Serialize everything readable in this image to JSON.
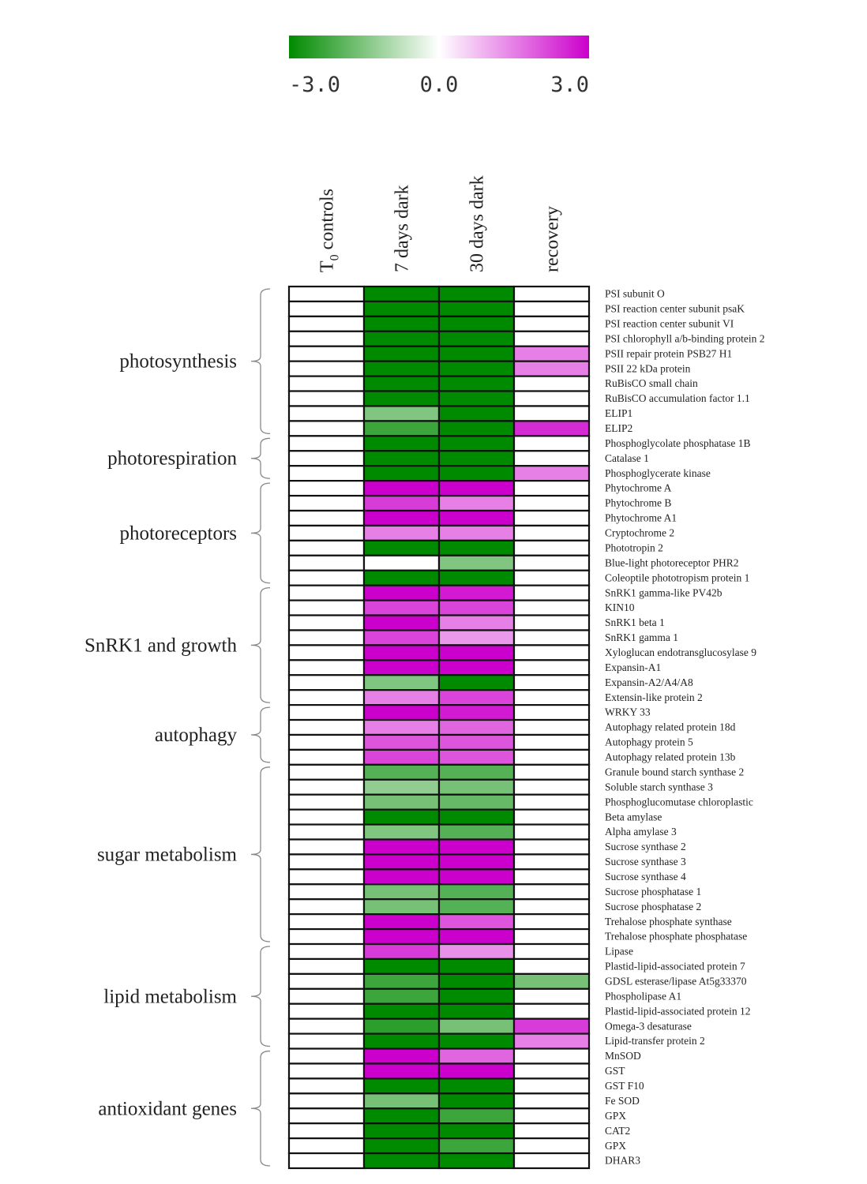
{
  "chart_data": {
    "type": "heatmap",
    "title": "",
    "colorscale": {
      "min": -3.0,
      "mid": 0.0,
      "max": 3.0,
      "min_color": "#008a00",
      "mid_color": "#ffffff",
      "max_color": "#cc00cc",
      "tick_labels": [
        "-3.0",
        "0.0",
        "3.0"
      ]
    },
    "columns": [
      {
        "label": "T",
        "sub": "0",
        "rest": " controls"
      },
      {
        "label": "7 days dark",
        "sub": "",
        "rest": ""
      },
      {
        "label": "30 days dark",
        "sub": "",
        "rest": ""
      },
      {
        "label": "recovery",
        "sub": "",
        "rest": ""
      }
    ],
    "groups": [
      {
        "label": "photosynthesis",
        "from": 1,
        "to": 10
      },
      {
        "label": "photorespiration",
        "from": 11,
        "to": 13
      },
      {
        "label": "photoreceptors",
        "from": 14,
        "to": 20
      },
      {
        "label": "SnRK1 and growth",
        "from": 21,
        "to": 28
      },
      {
        "label": "autophagy",
        "from": 29,
        "to": 32
      },
      {
        "label": "sugar metabolism",
        "from": 33,
        "to": 44
      },
      {
        "label": "lipid metabolism",
        "from": 45,
        "to": 51
      },
      {
        "label": "antioxidant genes",
        "from": 52,
        "to": 59
      }
    ],
    "rows": [
      {
        "gene": "PSI subunit O",
        "values": [
          0,
          -3,
          -3,
          0
        ]
      },
      {
        "gene": "PSI reaction center subunit psaK",
        "values": [
          0,
          -3,
          -3,
          0
        ]
      },
      {
        "gene": "PSI reaction center subunit VI",
        "values": [
          0,
          -3,
          -3,
          0
        ]
      },
      {
        "gene": "PSI chlorophyll a/b-binding protein 2",
        "values": [
          0,
          -3,
          -3,
          0
        ]
      },
      {
        "gene": "PSII repair protein PSB27 H1",
        "values": [
          0,
          -3,
          -3,
          1.5
        ]
      },
      {
        "gene": "PSII 22 kDa protein",
        "values": [
          0,
          -3,
          -3,
          1.5
        ]
      },
      {
        "gene": "RuBisCO small chain",
        "values": [
          0,
          -3,
          -3,
          0
        ]
      },
      {
        "gene": "RuBisCO accumulation factor 1.1",
        "values": [
          0,
          -3,
          -3,
          0
        ]
      },
      {
        "gene": "ELIP1",
        "values": [
          0,
          -1.5,
          -3,
          0
        ]
      },
      {
        "gene": "ELIP2",
        "values": [
          0,
          -2.3,
          -3,
          2.5
        ]
      },
      {
        "gene": "Phosphoglycolate phosphatase 1B",
        "values": [
          0,
          -3,
          -3,
          0
        ]
      },
      {
        "gene": "Catalase 1",
        "values": [
          0,
          -3,
          -3,
          0
        ]
      },
      {
        "gene": "Phosphoglycerate kinase",
        "values": [
          0,
          -3,
          -3,
          1.5
        ]
      },
      {
        "gene": "Phytochrome A",
        "values": [
          0,
          3,
          3,
          0
        ]
      },
      {
        "gene": "Phytochrome B",
        "values": [
          0,
          2.3,
          1.5,
          0
        ]
      },
      {
        "gene": "Phytochrome A1",
        "values": [
          0,
          3,
          3,
          0
        ]
      },
      {
        "gene": "Cryptochrome 2",
        "values": [
          0,
          1.5,
          1.5,
          0
        ]
      },
      {
        "gene": "Phototropin 2",
        "values": [
          0,
          -3,
          -3,
          0
        ]
      },
      {
        "gene": "Blue-light photoreceptor PHR2",
        "values": [
          0,
          0,
          -1.5,
          0
        ]
      },
      {
        "gene": "Coleoptile phototropism protein 1",
        "values": [
          0,
          -3,
          -3,
          0
        ]
      },
      {
        "gene": "SnRK1 gamma-like PV42b",
        "values": [
          0,
          3,
          2.7,
          0
        ]
      },
      {
        "gene": "KIN10",
        "values": [
          0,
          2.2,
          2.2,
          0
        ]
      },
      {
        "gene": "SnRK1 beta 1",
        "values": [
          0,
          3,
          1.5,
          0
        ]
      },
      {
        "gene": "SnRK1 gamma 1",
        "values": [
          0,
          2.2,
          1.2,
          0
        ]
      },
      {
        "gene": "Xyloglucan endotransglucosylase 9",
        "values": [
          0,
          3,
          3,
          0
        ]
      },
      {
        "gene": "Expansin-A1",
        "values": [
          0,
          3,
          3,
          0
        ]
      },
      {
        "gene": "Expansin-A2/A4/A8",
        "values": [
          0,
          -1.5,
          -3,
          0
        ]
      },
      {
        "gene": "Extensin-like protein 2",
        "values": [
          0,
          1.5,
          2.2,
          0
        ]
      },
      {
        "gene": "WRKY 33",
        "values": [
          0,
          3,
          2.7,
          0
        ]
      },
      {
        "gene": "Autophagy related protein 18d",
        "values": [
          0,
          1.5,
          1.8,
          0
        ]
      },
      {
        "gene": "Autophagy protein 5",
        "values": [
          0,
          2,
          2,
          0
        ]
      },
      {
        "gene": "Autophagy related protein 13b",
        "values": [
          0,
          2.2,
          2,
          0
        ]
      },
      {
        "gene": "Granule bound starch synthase 2",
        "values": [
          0,
          -2,
          -2,
          0
        ]
      },
      {
        "gene": "Soluble starch synthase 3",
        "values": [
          0,
          -1.3,
          -1.6,
          0
        ]
      },
      {
        "gene": "Phosphoglucomutase chloroplastic",
        "values": [
          0,
          -1.6,
          -1.8,
          0
        ]
      },
      {
        "gene": "Beta amylase",
        "values": [
          0,
          -3,
          -3,
          0
        ]
      },
      {
        "gene": "Alpha amylase 3",
        "values": [
          0,
          -1.5,
          -2,
          0
        ]
      },
      {
        "gene": "Sucrose synthase 2",
        "values": [
          0,
          3,
          3,
          0
        ]
      },
      {
        "gene": "Sucrose synthase 3",
        "values": [
          0,
          3,
          3,
          0
        ]
      },
      {
        "gene": "Sucrose synthase 4",
        "values": [
          0,
          3,
          3,
          0
        ]
      },
      {
        "gene": "Sucrose phosphatase 1",
        "values": [
          0,
          -1.6,
          -2,
          0
        ]
      },
      {
        "gene": "Sucrose phosphatase 2",
        "values": [
          0,
          -1.6,
          -2,
          0
        ]
      },
      {
        "gene": "Trehalose phosphate synthase",
        "values": [
          0,
          3,
          2,
          0
        ]
      },
      {
        "gene": "Trehalose phosphate phosphatase",
        "values": [
          0,
          3,
          3,
          0
        ]
      },
      {
        "gene": "Lipase",
        "values": [
          0,
          2.3,
          1.3,
          0
        ]
      },
      {
        "gene": "Plastid-lipid-associated protein 7",
        "values": [
          0,
          -3,
          -3,
          0
        ]
      },
      {
        "gene": "GDSL esterase/lipase At5g33370",
        "values": [
          0,
          -2.3,
          -3,
          -1.6
        ]
      },
      {
        "gene": "Phospholipase A1",
        "values": [
          0,
          -2.3,
          -3,
          0
        ]
      },
      {
        "gene": "Plastid-lipid-associated protein 12",
        "values": [
          0,
          -3,
          -3,
          0
        ]
      },
      {
        "gene": "Omega-3 desaturase",
        "values": [
          0,
          -2.5,
          -1.6,
          2.3
        ]
      },
      {
        "gene": "Lipid-transfer protein 2",
        "values": [
          0,
          -3,
          -3,
          1.5
        ]
      },
      {
        "gene": "MnSOD",
        "values": [
          0,
          3,
          1.8,
          0
        ]
      },
      {
        "gene": "GST",
        "values": [
          0,
          3,
          3,
          0
        ]
      },
      {
        "gene": "GST F10",
        "values": [
          0,
          -3,
          -3,
          0
        ]
      },
      {
        "gene": "Fe SOD",
        "values": [
          0,
          -1.6,
          -3,
          0
        ]
      },
      {
        "gene": "GPX",
        "values": [
          0,
          -3,
          -2.3,
          0
        ]
      },
      {
        "gene": "CAT2",
        "values": [
          0,
          -3,
          -3,
          0
        ]
      },
      {
        "gene": "GPX",
        "values": [
          0,
          -3,
          -2.3,
          0
        ]
      },
      {
        "gene": "DHAR3",
        "values": [
          0,
          -3,
          -3,
          0
        ]
      }
    ]
  }
}
